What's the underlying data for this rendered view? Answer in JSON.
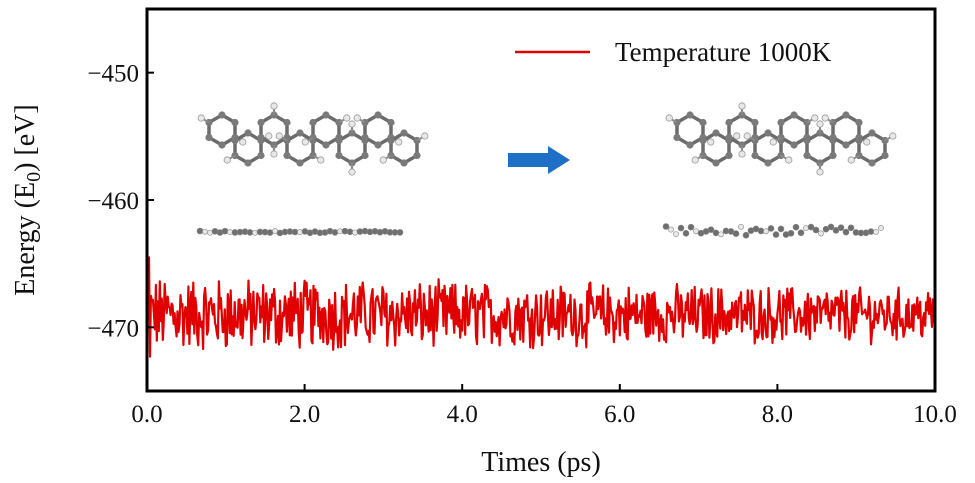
{
  "chart_data": {
    "type": "line",
    "xlabel": "Times (ps)",
    "ylabel": "Energy (E",
    "ylabel_sub": "0",
    "ylabel_unit": ") [eV]",
    "xlim": [
      0,
      10
    ],
    "ylim": [
      -475,
      -445
    ],
    "x_ticks": [
      0,
      2,
      4,
      6,
      8,
      10
    ],
    "x_tick_labels": [
      "0.0",
      "2.0",
      "4.0",
      "6.0",
      "8.0",
      "10.0"
    ],
    "y_ticks": [
      -450,
      -460,
      -470
    ],
    "y_tick_labels": [
      "−450",
      "−460",
      "−470"
    ],
    "grid": false,
    "legend_position": "top-right",
    "series": [
      {
        "name": "Temperature 1000K",
        "color": "#e00000",
        "mean": -469,
        "x_start": 0,
        "x_end": 10,
        "samples": 800
      }
    ],
    "arrow_color": "#1e6fc6"
  }
}
